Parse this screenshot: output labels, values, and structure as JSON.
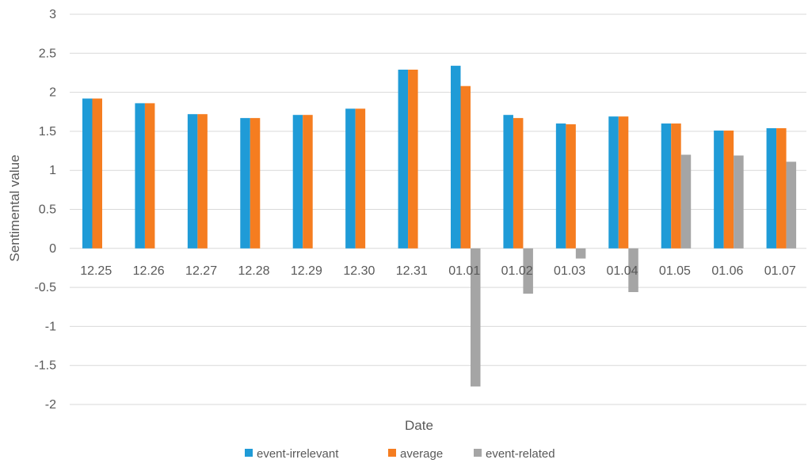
{
  "chart_data": {
    "type": "bar",
    "title": "",
    "xlabel": "Date",
    "ylabel": "Sentimental value",
    "ylim": [
      -2,
      3
    ],
    "yticks": [
      3,
      2.5,
      2,
      1.5,
      1,
      0.5,
      0,
      -0.5,
      -1,
      -1.5,
      -2
    ],
    "grid": true,
    "legend_position": "bottom",
    "categories": [
      "12.25",
      "12.26",
      "12.27",
      "12.28",
      "12.29",
      "12.30",
      "12.31",
      "01.01",
      "01.02",
      "01.03",
      "01.04",
      "01.05",
      "01.06",
      "01.07"
    ],
    "series": [
      {
        "name": "event-irrelevant",
        "color": "#1f9bd7",
        "values": [
          1.92,
          1.86,
          1.72,
          1.67,
          1.71,
          1.79,
          2.29,
          2.34,
          1.71,
          1.6,
          1.69,
          1.6,
          1.51,
          1.54
        ]
      },
      {
        "name": "average",
        "color": "#f57d20",
        "values": [
          1.92,
          1.86,
          1.72,
          1.67,
          1.71,
          1.79,
          2.29,
          2.08,
          1.67,
          1.59,
          1.69,
          1.6,
          1.51,
          1.54
        ]
      },
      {
        "name": "event-related",
        "color": "#a5a5a5",
        "values": [
          null,
          null,
          null,
          null,
          null,
          null,
          null,
          -1.77,
          -0.58,
          -0.13,
          -0.56,
          1.2,
          1.19,
          1.11
        ]
      }
    ]
  }
}
